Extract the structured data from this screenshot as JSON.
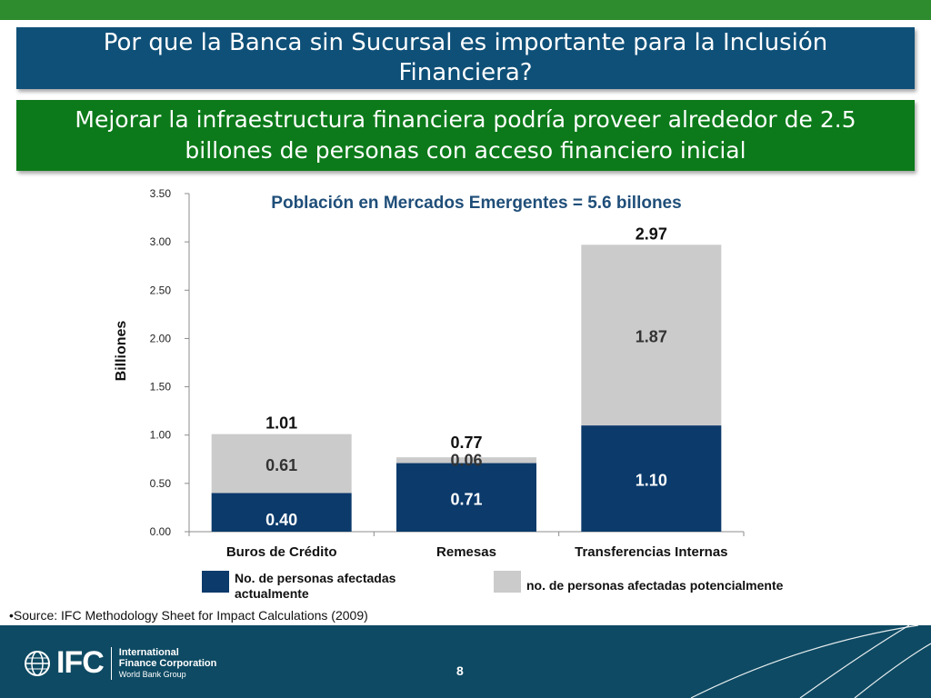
{
  "slide": {
    "title": "Por que la Banca sin Sucursal es importante para la Inclusión Financiera?",
    "subtitle": "Mejorar la infraestructura financiera podría proveer alrededor de 2.5 billones de personas con acceso financiero inicial",
    "source": "•Source: IFC Methodology Sheet for Impact Calculations (2009)",
    "page_number": "8"
  },
  "legend": {
    "actual": "No. de  personas afectadas actualmente",
    "potential": "no. de personas afectadas potencialmente"
  },
  "footer": {
    "logo_text": "IFC",
    "org_line1": "International",
    "org_line2": "Finance Corporation",
    "org_line3": "World Bank Group"
  },
  "colors": {
    "actual": "#0b3a6b",
    "potential": "#cbcbcb",
    "title_bg": "#0f5078",
    "subtitle_bg": "#0c7a1a",
    "top_bar": "#2e8b2e",
    "footer_bg": "#0e4a63",
    "chart_title": "#1f4e79"
  },
  "chart_data": {
    "type": "bar",
    "stacked": true,
    "title": "Población en Mercados Emergentes = 5.6 billones",
    "ylabel": "Billiones",
    "xlabel": "",
    "ylim": [
      0,
      3.5
    ],
    "yticks": [
      "0.00",
      "0.50",
      "1.00",
      "1.50",
      "2.00",
      "2.50",
      "3.00",
      "3.50"
    ],
    "grid": false,
    "legend_position": "bottom",
    "categories": [
      "Buros de Crédito",
      "Remesas",
      "Transferencias Internas"
    ],
    "series": [
      {
        "name": "No. de  personas afectadas actualmente",
        "values": [
          0.4,
          0.71,
          1.1
        ],
        "labels": [
          "0.40",
          "0.71",
          "1.10"
        ]
      },
      {
        "name": "no. de personas afectadas potencialmente",
        "values": [
          0.61,
          0.06,
          1.87
        ],
        "labels": [
          "0.61",
          "0.06",
          "1.87"
        ]
      }
    ],
    "totals": [
      1.01,
      0.77,
      2.97
    ],
    "total_labels": [
      "1.01",
      "0.77",
      "2.97"
    ]
  }
}
